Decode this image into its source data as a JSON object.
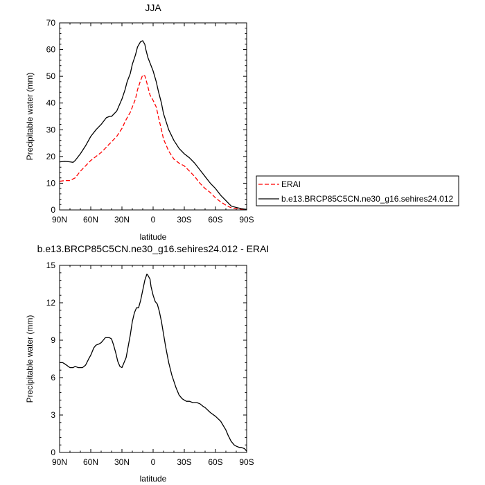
{
  "chart_data": [
    {
      "type": "line",
      "title": "JJA",
      "xlabel": "latitude",
      "ylabel": "Precipitable water (mm)",
      "xlim": [
        90,
        -90
      ],
      "ylim": [
        0,
        70
      ],
      "xticks": [
        90,
        60,
        30,
        0,
        -30,
        -60,
        -90
      ],
      "xtick_labels": [
        "90N",
        "60N",
        "30N",
        "0",
        "30S",
        "60S",
        "90S"
      ],
      "yticks": [
        0,
        10,
        20,
        30,
        40,
        50,
        60,
        70
      ],
      "ytick_labels": [
        "0",
        "10",
        "20",
        "30",
        "40",
        "50",
        "60",
        "70"
      ],
      "grid": false,
      "legend_position": "right",
      "series": [
        {
          "name": "ERAI",
          "color": "#ff0000",
          "dash": "dashed",
          "x": [
            90,
            85,
            80,
            75,
            70,
            65,
            60,
            55,
            50,
            45,
            40,
            35,
            30,
            27,
            25,
            22,
            20,
            17,
            15,
            12,
            10,
            8,
            7,
            5,
            3,
            0,
            -3,
            -5,
            -8,
            -10,
            -15,
            -20,
            -25,
            -30,
            -35,
            -40,
            -45,
            -50,
            -55,
            -60,
            -65,
            -70,
            -75,
            -80,
            -85,
            -90
          ],
          "y": [
            10.7,
            11.0,
            11.0,
            12.0,
            14.5,
            16.5,
            18.5,
            20.0,
            21.5,
            23.5,
            25.5,
            27.5,
            30.5,
            33.0,
            34.5,
            36.5,
            38.5,
            41.5,
            45.0,
            48.5,
            50.5,
            50.2,
            49.0,
            46.0,
            43.0,
            41.0,
            38.5,
            35.0,
            30.0,
            26.5,
            22.0,
            19.0,
            17.5,
            16.5,
            14.5,
            12.5,
            10.0,
            8.0,
            6.5,
            4.5,
            3.0,
            1.8,
            0.8,
            0.5,
            0.3,
            0.2
          ]
        },
        {
          "name": "b.e13.BRCP85C5CN.ne30_g16.sehires24.012",
          "color": "#000000",
          "dash": "solid",
          "x": [
            90,
            85,
            80,
            77,
            75,
            70,
            65,
            60,
            55,
            50,
            45,
            42,
            40,
            35,
            30,
            27,
            25,
            22,
            20,
            17,
            15,
            12,
            10,
            8,
            7,
            5,
            3,
            0,
            -3,
            -5,
            -8,
            -10,
            -15,
            -20,
            -25,
            -30,
            -35,
            -40,
            -45,
            -50,
            -55,
            -60,
            -65,
            -70,
            -75,
            -80,
            -85,
            -90
          ],
          "y": [
            18.0,
            18.2,
            18.0,
            17.8,
            18.5,
            21.0,
            24.0,
            27.5,
            30.0,
            32.0,
            34.5,
            35.0,
            35.0,
            37.0,
            41.5,
            45.0,
            48.0,
            51.0,
            54.5,
            58.0,
            61.0,
            63.0,
            63.3,
            62.0,
            60.0,
            57.0,
            55.0,
            52.0,
            48.0,
            44.5,
            40.0,
            36.0,
            30.0,
            26.0,
            23.0,
            21.0,
            19.5,
            17.5,
            15.0,
            12.5,
            10.0,
            8.0,
            5.5,
            3.5,
            1.5,
            0.9,
            0.5,
            0.2
          ]
        }
      ]
    },
    {
      "type": "line",
      "title": "b.e13.BRCP85C5CN.ne30_g16.sehires24.012 - ERAI",
      "xlabel": "latitude",
      "ylabel": "Precipitable water (mm)",
      "xlim": [
        90,
        -90
      ],
      "ylim": [
        0,
        15
      ],
      "xticks": [
        90,
        60,
        30,
        0,
        -30,
        -60,
        -90
      ],
      "xtick_labels": [
        "90N",
        "60N",
        "30N",
        "0",
        "30S",
        "60S",
        "90S"
      ],
      "yticks": [
        0,
        3,
        6,
        9,
        12,
        15
      ],
      "ytick_labels": [
        "0",
        "3",
        "6",
        "9",
        "12",
        "15"
      ],
      "grid": false,
      "series": [
        {
          "name": "b.e13.BRCP85C5CN.ne30_g16.sehires24.012 - ERAI",
          "color": "#000000",
          "dash": "solid",
          "x": [
            90,
            87,
            85,
            80,
            77,
            75,
            72,
            70,
            68,
            65,
            62,
            60,
            57,
            55,
            52,
            50,
            48,
            46,
            44,
            42,
            40,
            38,
            36,
            34,
            32,
            30,
            28,
            26,
            24,
            22,
            20,
            18,
            16,
            14,
            12,
            10,
            8,
            6,
            5,
            3,
            2,
            0,
            -2,
            -4,
            -6,
            -8,
            -10,
            -12,
            -15,
            -18,
            -20,
            -22,
            -25,
            -28,
            -30,
            -32,
            -35,
            -38,
            -40,
            -42,
            -45,
            -48,
            -50,
            -55,
            -60,
            -65,
            -70,
            -72,
            -75,
            -78,
            -80,
            -83,
            -85,
            -88,
            -90
          ],
          "y": [
            7.2,
            7.2,
            7.1,
            6.8,
            6.8,
            6.9,
            6.8,
            6.8,
            6.8,
            7.0,
            7.5,
            7.8,
            8.4,
            8.6,
            8.7,
            8.8,
            9.0,
            9.2,
            9.2,
            9.2,
            9.1,
            8.6,
            8.0,
            7.3,
            6.9,
            6.8,
            7.2,
            7.6,
            8.5,
            9.4,
            10.5,
            11.2,
            11.6,
            11.6,
            12.2,
            13.0,
            13.8,
            14.3,
            14.2,
            13.9,
            13.3,
            12.6,
            12.1,
            11.9,
            11.3,
            10.5,
            9.5,
            8.5,
            7.2,
            6.2,
            5.7,
            5.2,
            4.6,
            4.3,
            4.2,
            4.1,
            4.1,
            4.0,
            4.0,
            4.0,
            3.9,
            3.7,
            3.6,
            3.2,
            2.9,
            2.5,
            1.8,
            1.4,
            0.9,
            0.6,
            0.5,
            0.4,
            0.4,
            0.3,
            0.1
          ]
        }
      ]
    }
  ]
}
